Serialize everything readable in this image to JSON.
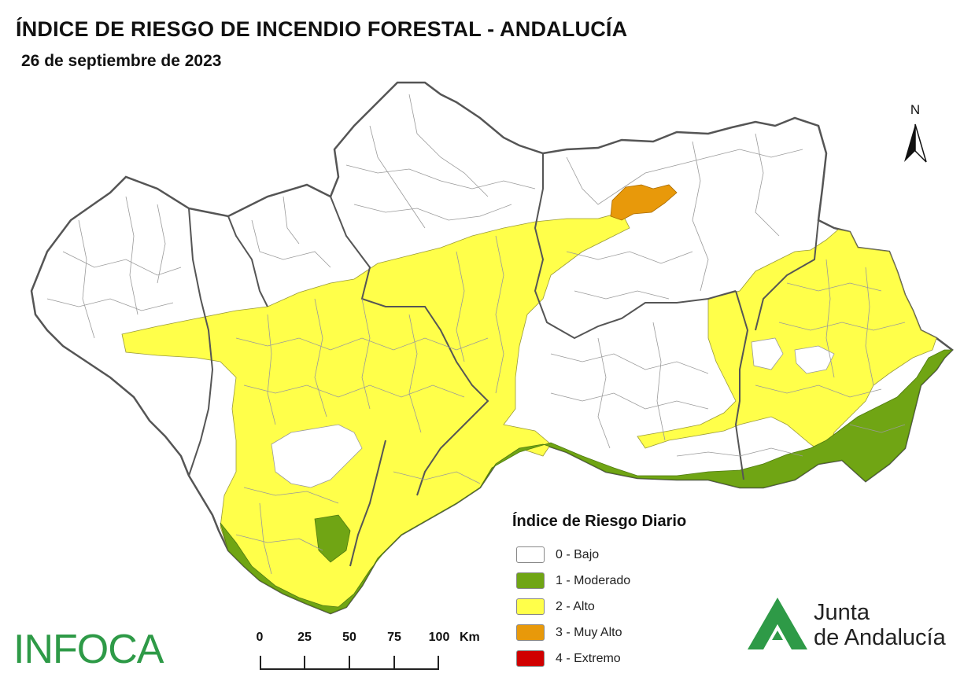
{
  "title": "ÍNDICE DE RIESGO DE INCENDIO FORESTAL - ANDALUCÍA",
  "subtitle": "26 de septiembre de 2023",
  "north_label": "N",
  "legend": {
    "title": "Índice de Riesgo Diario",
    "items": [
      {
        "label": "0 - Bajo",
        "color": "#ffffff"
      },
      {
        "label": "1 - Moderado",
        "color": "#70a514"
      },
      {
        "label": "2 - Alto",
        "color": "#ffff4a"
      },
      {
        "label": "3 - Muy Alto",
        "color": "#e8990a"
      },
      {
        "label": "4 - Extremo",
        "color": "#d00000"
      }
    ]
  },
  "scale": {
    "labels": [
      "0",
      "25",
      "50",
      "75",
      "100"
    ],
    "unit": "Km"
  },
  "logos": {
    "infoca": "INFOCA",
    "junta_line1": "Junta",
    "junta_line2": "de Andalucía"
  },
  "colors": {
    "bajo": "#ffffff",
    "moderado": "#70a514",
    "alto": "#ffff4a",
    "muy_alto": "#e8990a",
    "border": "#555555",
    "municipal": "#9a9a9a",
    "logo_green": "#2e9a47"
  }
}
